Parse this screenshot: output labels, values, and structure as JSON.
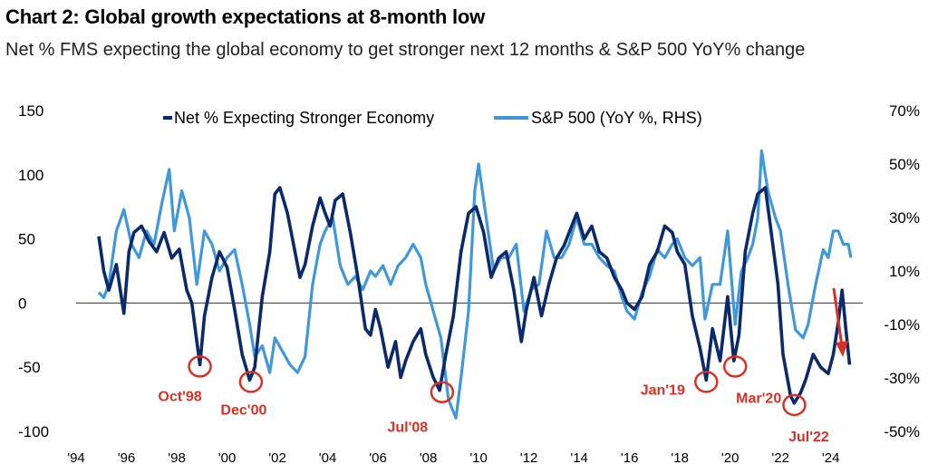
{
  "header": {
    "title": "Chart 2: Global growth expectations at 8-month low",
    "subtitle": "Net % FMS expecting the global economy to get stronger next 12 months & S&P 500 YoY% change"
  },
  "chart_data": {
    "type": "line",
    "title": "Chart 2: Global growth expectations at 8-month low",
    "subtitle": "Net % FMS expecting the global economy to get stronger next 12 months & S&P 500 YoY% change",
    "left_axis": {
      "ylim": [
        -100,
        150
      ],
      "ticks": [
        "150",
        "100",
        "50",
        "0",
        "-50",
        "-100"
      ]
    },
    "right_axis": {
      "ylim": [
        -50,
        70
      ],
      "ticks": [
        "70%",
        "50%",
        "30%",
        "10%",
        "-10%",
        "-30%",
        "-50%"
      ]
    },
    "x_axis": {
      "xlim": [
        1994,
        2025.2
      ],
      "ticks": [
        "'94",
        "'96",
        "'98",
        "'00",
        "'02",
        "'04",
        "'06",
        "'08",
        "'10",
        "'12",
        "'14",
        "'16",
        "'18",
        "'20",
        "'22",
        "'24"
      ]
    },
    "zero_line": true,
    "grid": false,
    "legend_position": "top",
    "series": [
      {
        "name": "Net % Expecting Stronger Economy",
        "axis": "left",
        "color": "#0b2a6b",
        "points": [
          [
            1994.9,
            52
          ],
          [
            1995.1,
            25
          ],
          [
            1995.3,
            10
          ],
          [
            1995.6,
            30
          ],
          [
            1995.9,
            -8
          ],
          [
            1996.1,
            40
          ],
          [
            1996.3,
            55
          ],
          [
            1996.6,
            60
          ],
          [
            1996.9,
            48
          ],
          [
            1997.2,
            40
          ],
          [
            1997.5,
            55
          ],
          [
            1997.8,
            35
          ],
          [
            1998.1,
            42
          ],
          [
            1998.4,
            10
          ],
          [
            1998.6,
            0
          ],
          [
            1998.8,
            -30
          ],
          [
            1998.92,
            -48
          ],
          [
            1999.1,
            -10
          ],
          [
            1999.4,
            20
          ],
          [
            1999.7,
            40
          ],
          [
            2000.0,
            28
          ],
          [
            2000.3,
            -5
          ],
          [
            2000.6,
            -40
          ],
          [
            2000.9,
            -60
          ],
          [
            2001.1,
            -50
          ],
          [
            2001.4,
            5
          ],
          [
            2001.7,
            40
          ],
          [
            2001.9,
            85
          ],
          [
            2002.1,
            90
          ],
          [
            2002.4,
            70
          ],
          [
            2002.7,
            40
          ],
          [
            2002.9,
            20
          ],
          [
            2003.1,
            30
          ],
          [
            2003.4,
            60
          ],
          [
            2003.7,
            82
          ],
          [
            2003.9,
            70
          ],
          [
            2004.1,
            60
          ],
          [
            2004.3,
            80
          ],
          [
            2004.6,
            85
          ],
          [
            2004.9,
            55
          ],
          [
            2005.2,
            20
          ],
          [
            2005.5,
            -20
          ],
          [
            2005.7,
            -25
          ],
          [
            2005.9,
            -5
          ],
          [
            2006.1,
            -20
          ],
          [
            2006.4,
            -50
          ],
          [
            2006.7,
            -30
          ],
          [
            2006.9,
            -58
          ],
          [
            2007.1,
            -45
          ],
          [
            2007.4,
            -30
          ],
          [
            2007.7,
            -20
          ],
          [
            2007.9,
            -40
          ],
          [
            2008.2,
            -58
          ],
          [
            2008.45,
            -68
          ],
          [
            2008.7,
            -40
          ],
          [
            2009.0,
            -10
          ],
          [
            2009.3,
            40
          ],
          [
            2009.6,
            70
          ],
          [
            2009.9,
            75
          ],
          [
            2010.2,
            55
          ],
          [
            2010.5,
            20
          ],
          [
            2010.8,
            35
          ],
          [
            2011.1,
            40
          ],
          [
            2011.4,
            10
          ],
          [
            2011.7,
            -30
          ],
          [
            2011.9,
            -5
          ],
          [
            2012.2,
            20
          ],
          [
            2012.5,
            -10
          ],
          [
            2012.8,
            15
          ],
          [
            2013.1,
            35
          ],
          [
            2013.4,
            45
          ],
          [
            2013.7,
            60
          ],
          [
            2013.9,
            70
          ],
          [
            2014.2,
            50
          ],
          [
            2014.5,
            60
          ],
          [
            2014.8,
            40
          ],
          [
            2015.1,
            35
          ],
          [
            2015.4,
            20
          ],
          [
            2015.7,
            10
          ],
          [
            2015.9,
            0
          ],
          [
            2016.2,
            -5
          ],
          [
            2016.5,
            5
          ],
          [
            2016.8,
            30
          ],
          [
            2017.1,
            40
          ],
          [
            2017.4,
            60
          ],
          [
            2017.7,
            55
          ],
          [
            2017.9,
            40
          ],
          [
            2018.2,
            30
          ],
          [
            2018.5,
            -10
          ],
          [
            2018.8,
            -35
          ],
          [
            2019.05,
            -60
          ],
          [
            2019.3,
            -20
          ],
          [
            2019.6,
            -45
          ],
          [
            2019.9,
            5
          ],
          [
            2020.15,
            -45
          ],
          [
            2020.35,
            -25
          ],
          [
            2020.6,
            40
          ],
          [
            2020.9,
            70
          ],
          [
            2021.1,
            85
          ],
          [
            2021.4,
            90
          ],
          [
            2021.6,
            60
          ],
          [
            2021.9,
            15
          ],
          [
            2022.1,
            -40
          ],
          [
            2022.4,
            -72
          ],
          [
            2022.55,
            -78
          ],
          [
            2022.8,
            -70
          ],
          [
            2023.0,
            -60
          ],
          [
            2023.3,
            -40
          ],
          [
            2023.6,
            -50
          ],
          [
            2023.9,
            -55
          ],
          [
            2024.1,
            -40
          ],
          [
            2024.3,
            -15
          ],
          [
            2024.45,
            10
          ],
          [
            2024.6,
            -20
          ],
          [
            2024.75,
            -48
          ]
        ]
      },
      {
        "name": "S&P 500 (YoY %, RHS)",
        "axis": "right",
        "color": "#3f98da",
        "points": [
          [
            1994.9,
            2
          ],
          [
            1995.1,
            0
          ],
          [
            1995.3,
            5
          ],
          [
            1995.6,
            25
          ],
          [
            1995.9,
            33
          ],
          [
            1996.2,
            20
          ],
          [
            1996.5,
            15
          ],
          [
            1996.8,
            25
          ],
          [
            1997.1,
            20
          ],
          [
            1997.4,
            35
          ],
          [
            1997.7,
            48
          ],
          [
            1997.9,
            25
          ],
          [
            1998.2,
            40
          ],
          [
            1998.5,
            30
          ],
          [
            1998.8,
            5
          ],
          [
            1999.1,
            25
          ],
          [
            1999.4,
            20
          ],
          [
            1999.7,
            10
          ],
          [
            2000.0,
            15
          ],
          [
            2000.3,
            18
          ],
          [
            2000.6,
            5
          ],
          [
            2000.9,
            -10
          ],
          [
            2001.1,
            -22
          ],
          [
            2001.4,
            -18
          ],
          [
            2001.7,
            -28
          ],
          [
            2001.9,
            -15
          ],
          [
            2002.2,
            -20
          ],
          [
            2002.5,
            -25
          ],
          [
            2002.8,
            -28
          ],
          [
            2003.1,
            -22
          ],
          [
            2003.4,
            5
          ],
          [
            2003.7,
            20
          ],
          [
            2003.9,
            25
          ],
          [
            2004.2,
            30
          ],
          [
            2004.5,
            12
          ],
          [
            2004.8,
            5
          ],
          [
            2005.1,
            8
          ],
          [
            2005.4,
            3
          ],
          [
            2005.7,
            10
          ],
          [
            2005.9,
            8
          ],
          [
            2006.2,
            12
          ],
          [
            2006.5,
            5
          ],
          [
            2006.8,
            12
          ],
          [
            2007.1,
            15
          ],
          [
            2007.4,
            20
          ],
          [
            2007.7,
            15
          ],
          [
            2007.9,
            5
          ],
          [
            2008.2,
            -5
          ],
          [
            2008.5,
            -15
          ],
          [
            2008.8,
            -38
          ],
          [
            2009.1,
            -45
          ],
          [
            2009.3,
            -30
          ],
          [
            2009.6,
            -5
          ],
          [
            2009.85,
            40
          ],
          [
            2010.0,
            50
          ],
          [
            2010.3,
            30
          ],
          [
            2010.6,
            10
          ],
          [
            2010.9,
            15
          ],
          [
            2011.2,
            15
          ],
          [
            2011.5,
            20
          ],
          [
            2011.8,
            -5
          ],
          [
            2012.1,
            3
          ],
          [
            2012.4,
            5
          ],
          [
            2012.7,
            25
          ],
          [
            2013.0,
            15
          ],
          [
            2013.3,
            15
          ],
          [
            2013.6,
            20
          ],
          [
            2013.9,
            30
          ],
          [
            2014.2,
            20
          ],
          [
            2014.5,
            20
          ],
          [
            2014.8,
            15
          ],
          [
            2015.1,
            12
          ],
          [
            2015.4,
            10
          ],
          [
            2015.7,
            0
          ],
          [
            2015.9,
            -5
          ],
          [
            2016.2,
            -8
          ],
          [
            2016.5,
            2
          ],
          [
            2016.8,
            8
          ],
          [
            2017.1,
            18
          ],
          [
            2017.4,
            15
          ],
          [
            2017.7,
            20
          ],
          [
            2017.9,
            22
          ],
          [
            2018.2,
            15
          ],
          [
            2018.5,
            12
          ],
          [
            2018.8,
            15
          ],
          [
            2019.0,
            -8
          ],
          [
            2019.3,
            5
          ],
          [
            2019.6,
            5
          ],
          [
            2019.9,
            25
          ],
          [
            2020.2,
            -10
          ],
          [
            2020.45,
            10
          ],
          [
            2020.7,
            15
          ],
          [
            2020.9,
            20
          ],
          [
            2021.1,
            30
          ],
          [
            2021.25,
            55
          ],
          [
            2021.5,
            40
          ],
          [
            2021.8,
            30
          ],
          [
            2022.0,
            25
          ],
          [
            2022.3,
            5
          ],
          [
            2022.6,
            -12
          ],
          [
            2022.9,
            -15
          ],
          [
            2023.1,
            -10
          ],
          [
            2023.4,
            5
          ],
          [
            2023.7,
            18
          ],
          [
            2023.9,
            15
          ],
          [
            2024.1,
            25
          ],
          [
            2024.3,
            25
          ],
          [
            2024.5,
            20
          ],
          [
            2024.7,
            20
          ],
          [
            2024.8,
            15
          ]
        ]
      }
    ],
    "annotations": [
      {
        "label": "Oct'98",
        "x": 1998.92,
        "y": -48
      },
      {
        "label": "Dec'00",
        "x": 2000.95,
        "y": -60
      },
      {
        "label": "Jul'08",
        "x": 2008.55,
        "y": -68
      },
      {
        "label": "Jan'19",
        "x": 2019.05,
        "y": -60
      },
      {
        "label": "Mar'20",
        "x": 2020.2,
        "y": -48
      },
      {
        "label": "Jul'22",
        "x": 2022.55,
        "y": -78
      }
    ],
    "trend_arrow": {
      "direction": "down",
      "color": "#d93025"
    },
    "annotation_color": "#d93025"
  }
}
